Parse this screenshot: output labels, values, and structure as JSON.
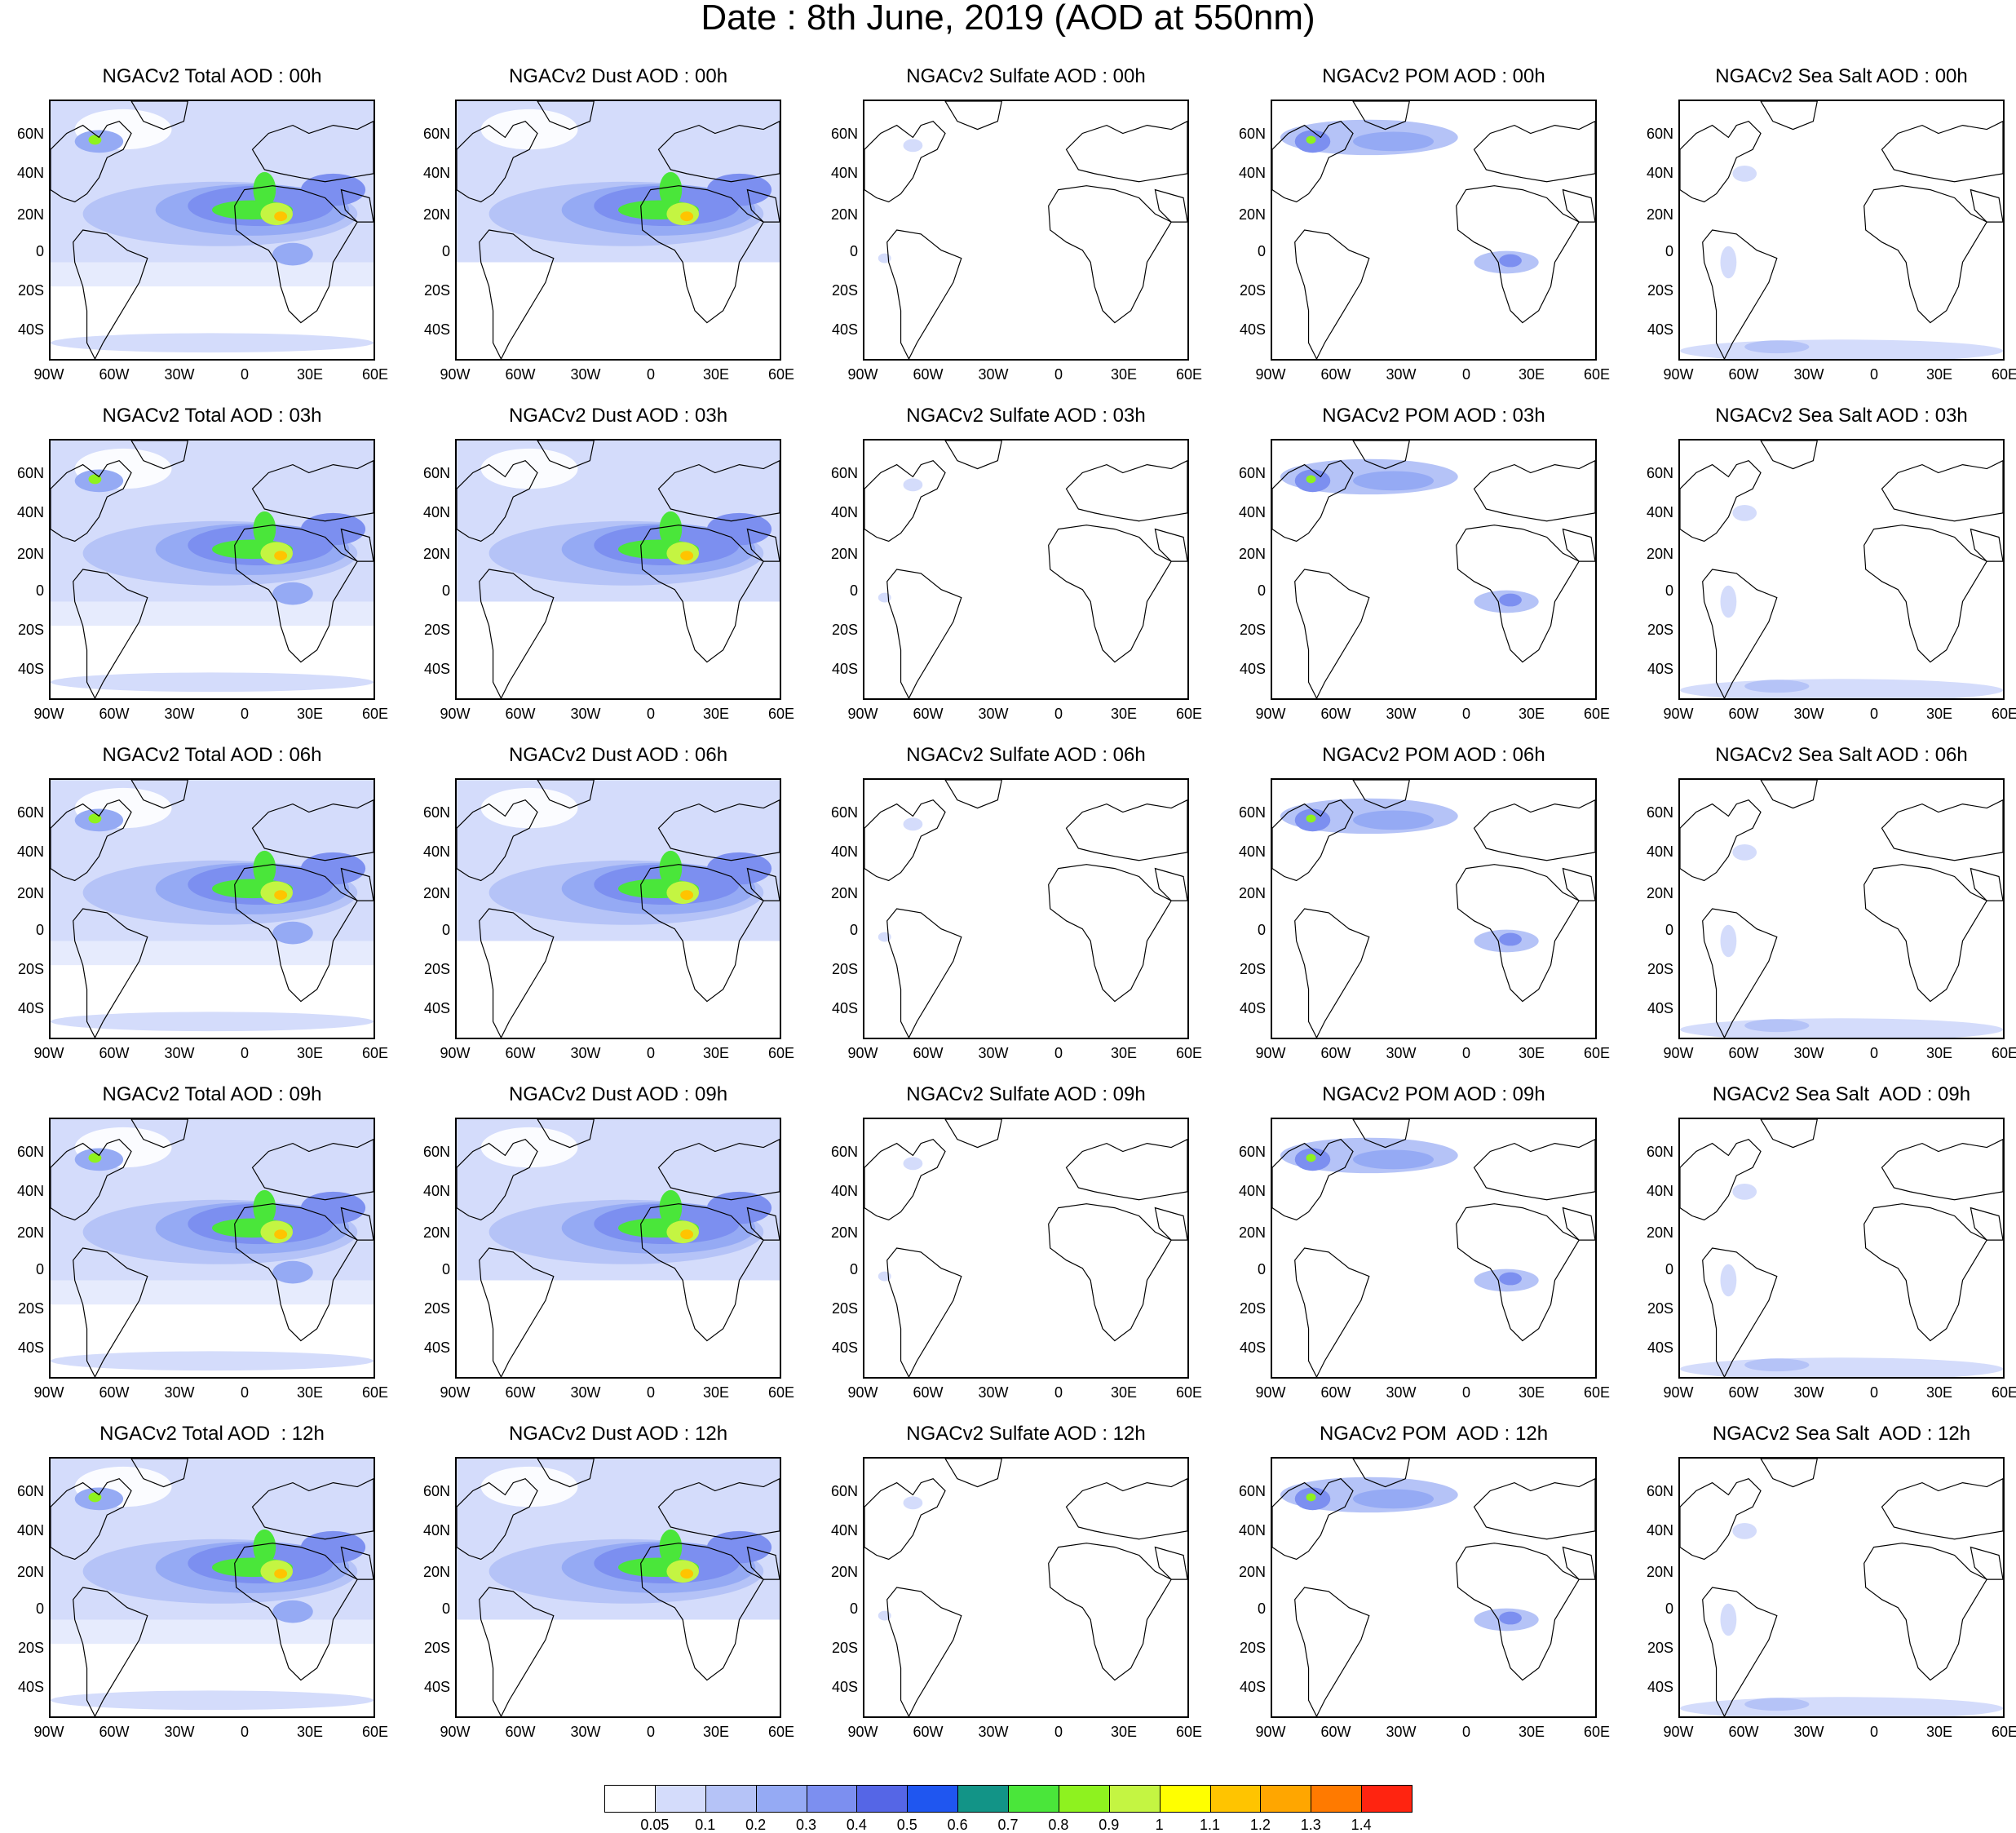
{
  "title": "Date : 8th June, 2019 (AOD at 550nm)",
  "lat_labels": [
    "60N",
    "40N",
    "20N",
    "0",
    "20S",
    "40S"
  ],
  "lon_labels": [
    "90W",
    "60W",
    "30W",
    "0",
    "30E",
    "60E"
  ],
  "panels": [
    {
      "title": "NGACv2 Total AOD : 00h",
      "species": "total"
    },
    {
      "title": "NGACv2 Dust AOD : 00h",
      "species": "dust"
    },
    {
      "title": "NGACv2 Sulfate AOD : 00h",
      "species": "sulfate"
    },
    {
      "title": "NGACv2 POM AOD : 00h",
      "species": "pom"
    },
    {
      "title": "NGACv2 Sea Salt AOD : 00h",
      "species": "seasalt"
    },
    {
      "title": "NGACv2 Total AOD : 03h",
      "species": "total"
    },
    {
      "title": "NGACv2 Dust AOD : 03h",
      "species": "dust"
    },
    {
      "title": "NGACv2 Sulfate AOD : 03h",
      "species": "sulfate"
    },
    {
      "title": "NGACv2 POM AOD : 03h",
      "species": "pom"
    },
    {
      "title": "NGACv2 Sea Salt AOD : 03h",
      "species": "seasalt"
    },
    {
      "title": "NGACv2 Total AOD : 06h",
      "species": "total"
    },
    {
      "title": "NGACv2 Dust AOD : 06h",
      "species": "dust"
    },
    {
      "title": "NGACv2 Sulfate AOD : 06h",
      "species": "sulfate"
    },
    {
      "title": "NGACv2 POM AOD : 06h",
      "species": "pom"
    },
    {
      "title": "NGACv2 Sea Salt AOD : 06h",
      "species": "seasalt"
    },
    {
      "title": "NGACv2 Total AOD : 09h",
      "species": "total"
    },
    {
      "title": "NGACv2 Dust AOD : 09h",
      "species": "dust"
    },
    {
      "title": "NGACv2 Sulfate AOD : 09h",
      "species": "sulfate"
    },
    {
      "title": "NGACv2 POM AOD : 09h",
      "species": "pom"
    },
    {
      "title": "NGACv2 Sea Salt  AOD : 09h",
      "species": "seasalt"
    },
    {
      "title": "NGACv2 Total AOD  : 12h",
      "species": "total"
    },
    {
      "title": "NGACv2 Dust AOD : 12h",
      "species": "dust"
    },
    {
      "title": "NGACv2 Sulfate AOD : 12h",
      "species": "sulfate"
    },
    {
      "title": "NGACv2 POM  AOD : 12h",
      "species": "pom"
    },
    {
      "title": "NGACv2 Sea Salt  AOD : 12h",
      "species": "seasalt"
    }
  ],
  "colorbar": {
    "labels": [
      "0.05",
      "0.1",
      "0.2",
      "0.3",
      "0.4",
      "0.5",
      "0.6",
      "0.7",
      "0.8",
      "0.9",
      "1",
      "1.1",
      "1.2",
      "1.3",
      "1.4"
    ],
    "colors": [
      "#ffffff",
      "#d4dcfb",
      "#b5c3f7",
      "#95aaf4",
      "#7c8ff0",
      "#5566e6",
      "#1f56f0",
      "#129487",
      "#4ae63a",
      "#8ef21f",
      "#c4f542",
      "#ffff00",
      "#ffc400",
      "#ffa600",
      "#ff7a00",
      "#ff2410"
    ]
  }
}
